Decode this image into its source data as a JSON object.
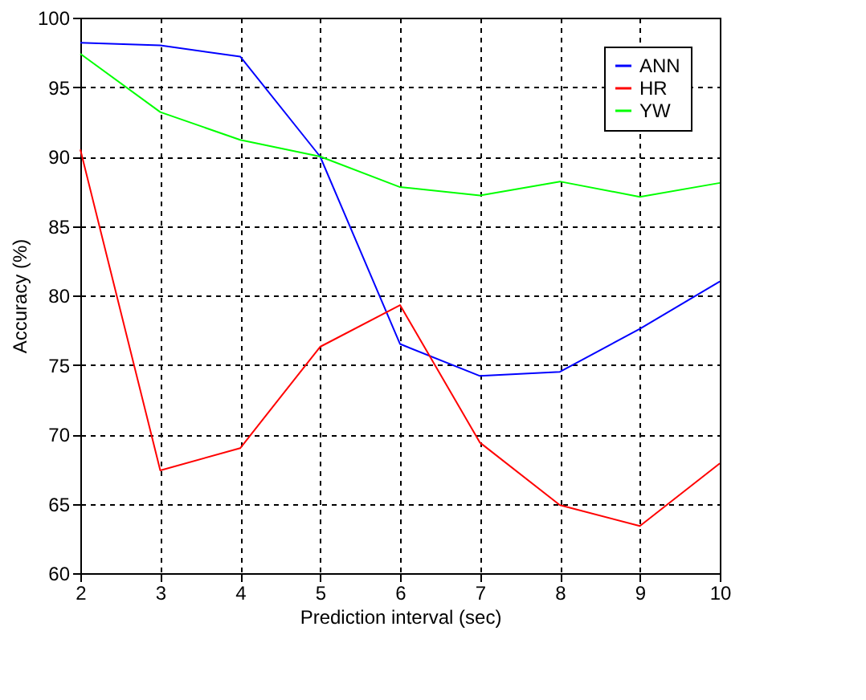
{
  "chart_data": {
    "type": "line",
    "xlabel": "Prediction interval (sec)",
    "ylabel": "Accuracy (%)",
    "x": [
      2,
      3,
      4,
      5,
      6,
      7,
      8,
      9,
      10
    ],
    "series": [
      {
        "name": "ANN",
        "color": "#0000ff",
        "values": [
          98.2,
          98.0,
          97.2,
          90.0,
          76.5,
          74.2,
          74.5,
          77.6,
          81.0
        ]
      },
      {
        "name": "HR",
        "color": "#ff0000",
        "values": [
          90.5,
          67.4,
          69.0,
          76.3,
          79.3,
          69.4,
          64.9,
          63.4,
          67.9
        ]
      },
      {
        "name": "YW",
        "color": "#00ff00",
        "values": [
          97.4,
          93.2,
          91.2,
          90.0,
          87.8,
          87.2,
          88.2,
          87.1,
          88.1
        ]
      }
    ],
    "xlim": [
      2,
      10
    ],
    "xticks": [
      2,
      3,
      4,
      5,
      6,
      7,
      8,
      9,
      10
    ],
    "ylim": [
      60,
      100
    ],
    "yticks": [
      60,
      65,
      70,
      75,
      80,
      85,
      90,
      95,
      100
    ],
    "grid": true,
    "legend": "top right",
    "marker": "none",
    "line_style": "solid"
  }
}
